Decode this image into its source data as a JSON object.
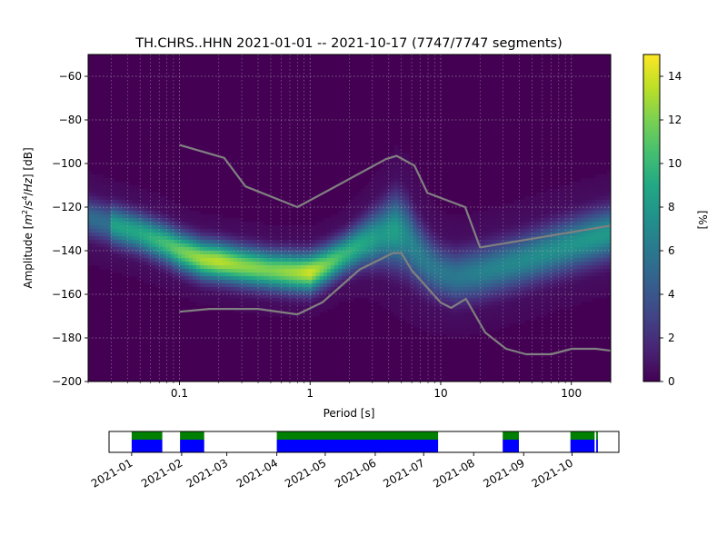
{
  "title": "TH.CHRS..HHN   2021-01-01 -- 2021-10-17  (7747/7747 segments)",
  "chart_data": [
    {
      "type": "heatmap",
      "description_of_series": "probabilistic power spectral density",
      "xlabel": "Period [s]",
      "ylabel_parts": {
        "prefix": "Amplitude [",
        "m": "m",
        "exp2": "2",
        "slash1": "/",
        "s": "s",
        "exp4": "4",
        "slash2": "/",
        "hz": "Hz",
        "suffix": "] [dB]"
      },
      "x_scale": "log",
      "xlim": [
        0.02,
        200
      ],
      "ylim": [
        -200,
        -50
      ],
      "x_ticks": [
        {
          "value": 0.1,
          "label": "0.1"
        },
        {
          "value": 1,
          "label": "1"
        },
        {
          "value": 10,
          "label": "10"
        },
        {
          "value": 100,
          "label": "100"
        }
      ],
      "y_ticks": [
        {
          "value": -60,
          "label": "−60"
        },
        {
          "value": -80,
          "label": "−80"
        },
        {
          "value": -100,
          "label": "−100"
        },
        {
          "value": -120,
          "label": "−120"
        },
        {
          "value": -140,
          "label": "−140"
        },
        {
          "value": -160,
          "label": "−160"
        },
        {
          "value": -180,
          "label": "−180"
        },
        {
          "value": -200,
          "label": "−200"
        }
      ],
      "grid": true,
      "background_color": "#440154",
      "colormap": "viridis",
      "colorbar": {
        "label": "[%]",
        "range": [
          0,
          15
        ],
        "ticks": [
          {
            "value": 0,
            "label": "0"
          },
          {
            "value": 2,
            "label": "2"
          },
          {
            "value": 4,
            "label": "4"
          },
          {
            "value": 6,
            "label": "6"
          },
          {
            "value": 8,
            "label": "8"
          },
          {
            "value": 10,
            "label": "10"
          },
          {
            "value": 12,
            "label": "12"
          },
          {
            "value": 14,
            "label": "14"
          }
        ]
      },
      "density_ridge": {
        "period": [
          0.02,
          0.03,
          0.05,
          0.08,
          0.1,
          0.15,
          0.2,
          0.3,
          0.5,
          0.8,
          1.0,
          1.3,
          1.8,
          2.5,
          3.5,
          4.5,
          5.5,
          6.5,
          8,
          10,
          13,
          20,
          40,
          80,
          150,
          200
        ],
        "peak_db": [
          -125,
          -128,
          -132,
          -137,
          -140,
          -144,
          -145,
          -147,
          -149,
          -150,
          -150,
          -147,
          -142,
          -137,
          -133,
          -131,
          -134,
          -140,
          -146,
          -150,
          -152,
          -150,
          -145,
          -139,
          -134,
          -132
        ],
        "spread_db": [
          6,
          6,
          6,
          6,
          6,
          6,
          6,
          6,
          6,
          6,
          6,
          6,
          6,
          7,
          9,
          11,
          11,
          10,
          9,
          8,
          8,
          8,
          8,
          8,
          8,
          8
        ],
        "peak_percent": [
          8,
          8.5,
          9,
          10.5,
          11.5,
          13,
          13.5,
          12.5,
          12,
          13,
          14,
          12,
          10,
          9,
          8,
          8.5,
          7,
          6.5,
          6,
          6,
          6,
          6.5,
          7,
          7.5,
          8,
          8
        ],
        "region_start_period": 0.03
      },
      "high_noise_model": {
        "period": [
          0.1,
          0.22,
          0.32,
          0.8,
          3.8,
          4.6,
          6.3,
          7.9,
          15.4,
          20,
          354.8
        ],
        "db": [
          -91.5,
          -97.4,
          -110.5,
          -120,
          -98,
          -96.5,
          -101,
          -113.5,
          -120,
          -138.5,
          -126
        ]
      },
      "low_noise_model": {
        "period": [
          0.1,
          0.17,
          0.4,
          0.8,
          1.24,
          2.4,
          4.3,
          5,
          6,
          10,
          12,
          15.6,
          21.9,
          31.6,
          45,
          70,
          101,
          154,
          328
        ],
        "db": [
          -168,
          -166.7,
          -166.7,
          -169.2,
          -163.7,
          -148.6,
          -141.1,
          -141.1,
          -149,
          -163.8,
          -166.2,
          -162.1,
          -177.5,
          -185,
          -187.5,
          -187.5,
          -185,
          -185,
          -187.5
        ]
      },
      "model_line_color": "#808080"
    },
    {
      "type": "bar",
      "description_of_series": "data coverage timeline",
      "xlim": [
        "2020-12-18",
        "2021-10-30"
      ],
      "x_ticks": [
        "2021-01",
        "2021-02",
        "2021-03",
        "2021-04",
        "2021-05",
        "2021-06",
        "2021-07",
        "2021-08",
        "2021-09",
        "2021-10"
      ],
      "x_tick_dates": [
        "2021-01-01",
        "2021-02-01",
        "2021-03-01",
        "2021-04-01",
        "2021-05-01",
        "2021-06-01",
        "2021-07-01",
        "2021-08-01",
        "2021-09-01",
        "2021-10-01"
      ],
      "coverage_intervals": [
        {
          "start": "2021-01-01",
          "end": "2021-01-20"
        },
        {
          "start": "2021-01-31",
          "end": "2021-02-15"
        },
        {
          "start": "2021-04-01",
          "end": "2021-07-10"
        },
        {
          "start": "2021-08-19",
          "end": "2021-08-29"
        },
        {
          "start": "2021-09-30",
          "end": "2021-10-15"
        },
        {
          "start": "2021-10-16",
          "end": "2021-10-17"
        }
      ],
      "colors": {
        "top": "#008000",
        "bottom": "#0000ff"
      }
    }
  ]
}
